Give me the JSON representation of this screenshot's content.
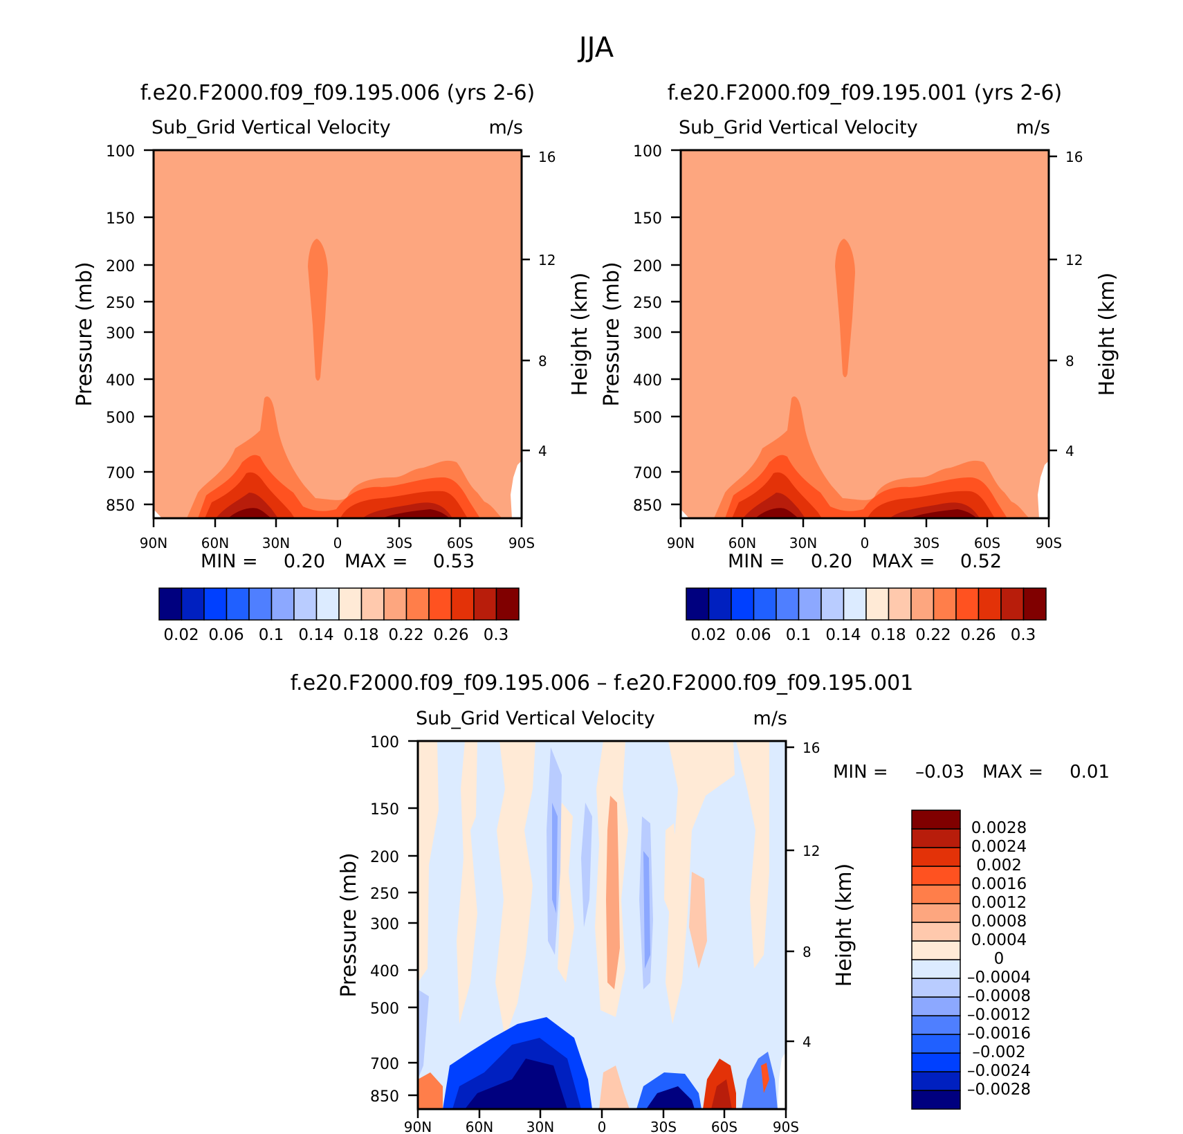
{
  "figure_title": "JJA",
  "palette_main": [
    "#00007f",
    "#0020c0",
    "#0040ff",
    "#2060ff",
    "#4f7fff",
    "#8ca8ff",
    "#b9ccff",
    "#dcebff",
    "#ffead6",
    "#ffc9ad",
    "#fda67f",
    "#ff7e4a",
    "#ff5220",
    "#e33208",
    "#b81d0b",
    "#800000"
  ],
  "palette_diff": [
    "#00007f",
    "#0020c0",
    "#0040ff",
    "#2060ff",
    "#4f7fff",
    "#8ca8ff",
    "#b9ccff",
    "#dcebff",
    "#ffead6",
    "#ffc9ad",
    "#fda67f",
    "#ff7e4a",
    "#ff5220",
    "#e33208",
    "#b81d0b",
    "#800000"
  ],
  "chart_data": [
    {
      "type": "heatmap",
      "title": "f.e20.F2000.f09_f09.195.006 (yrs 2-6)",
      "variable": "Sub_Grid Vertical Velocity",
      "units": "m/s",
      "xlabel": "",
      "ylabel": "Pressure (mb)",
      "ylabel_right": "Height (km)",
      "x_ticks": [
        "90N",
        "60N",
        "30N",
        "0",
        "30S",
        "60S",
        "90S"
      ],
      "y_ticks": [
        "100",
        "150",
        "200",
        "250",
        "300",
        "400",
        "500",
        "700",
        "850"
      ],
      "y_ticks_right": [
        "16",
        "12",
        "8",
        "4"
      ],
      "min_label": "MIN =",
      "min_value": "0.20",
      "max_label": "MAX =",
      "max_value": "0.53",
      "colorbar_labels": [
        "0.02",
        "0.06",
        "0.1",
        "0.14",
        "0.18",
        "0.22",
        "0.26",
        "0.3"
      ],
      "background_level": 10
    },
    {
      "type": "heatmap",
      "title": "f.e20.F2000.f09_f09.195.001 (yrs 2-6)",
      "variable": "Sub_Grid Vertical Velocity",
      "units": "m/s",
      "xlabel": "",
      "ylabel": "Pressure (mb)",
      "ylabel_right": "Height (km)",
      "x_ticks": [
        "90N",
        "60N",
        "30N",
        "0",
        "30S",
        "60S",
        "90S"
      ],
      "y_ticks": [
        "100",
        "150",
        "200",
        "250",
        "300",
        "400",
        "500",
        "700",
        "850"
      ],
      "y_ticks_right": [
        "16",
        "12",
        "8",
        "4"
      ],
      "min_label": "MIN =",
      "min_value": "0.20",
      "max_label": "MAX =",
      "max_value": "0.52",
      "colorbar_labels": [
        "0.02",
        "0.06",
        "0.1",
        "0.14",
        "0.18",
        "0.22",
        "0.26",
        "0.3"
      ],
      "background_level": 10
    },
    {
      "type": "heatmap",
      "title": "f.e20.F2000.f09_f09.195.006 – f.e20.F2000.f09_f09.195.001",
      "variable": "Sub_Grid Vertical Velocity",
      "units": "m/s",
      "xlabel": "",
      "ylabel": "Pressure (mb)",
      "ylabel_right": "Height (km)",
      "x_ticks": [
        "90N",
        "60N",
        "30N",
        "0",
        "30S",
        "60S",
        "90S"
      ],
      "y_ticks": [
        "100",
        "150",
        "200",
        "250",
        "300",
        "400",
        "500",
        "700",
        "850"
      ],
      "y_ticks_right": [
        "16",
        "12",
        "8",
        "4"
      ],
      "min_label": "MIN =",
      "min_value": "–0.03",
      "max_label": "MAX =",
      "max_value": "0.01",
      "colorbar_labels": [
        "0.0028",
        "0.0024",
        "0.002",
        "0.0016",
        "0.0012",
        "0.0008",
        "0.0004",
        "0",
        "–0.0004",
        "–0.0008",
        "–0.0012",
        "–0.0016",
        "–0.002",
        "–0.0024",
        "–0.0028"
      ]
    }
  ]
}
